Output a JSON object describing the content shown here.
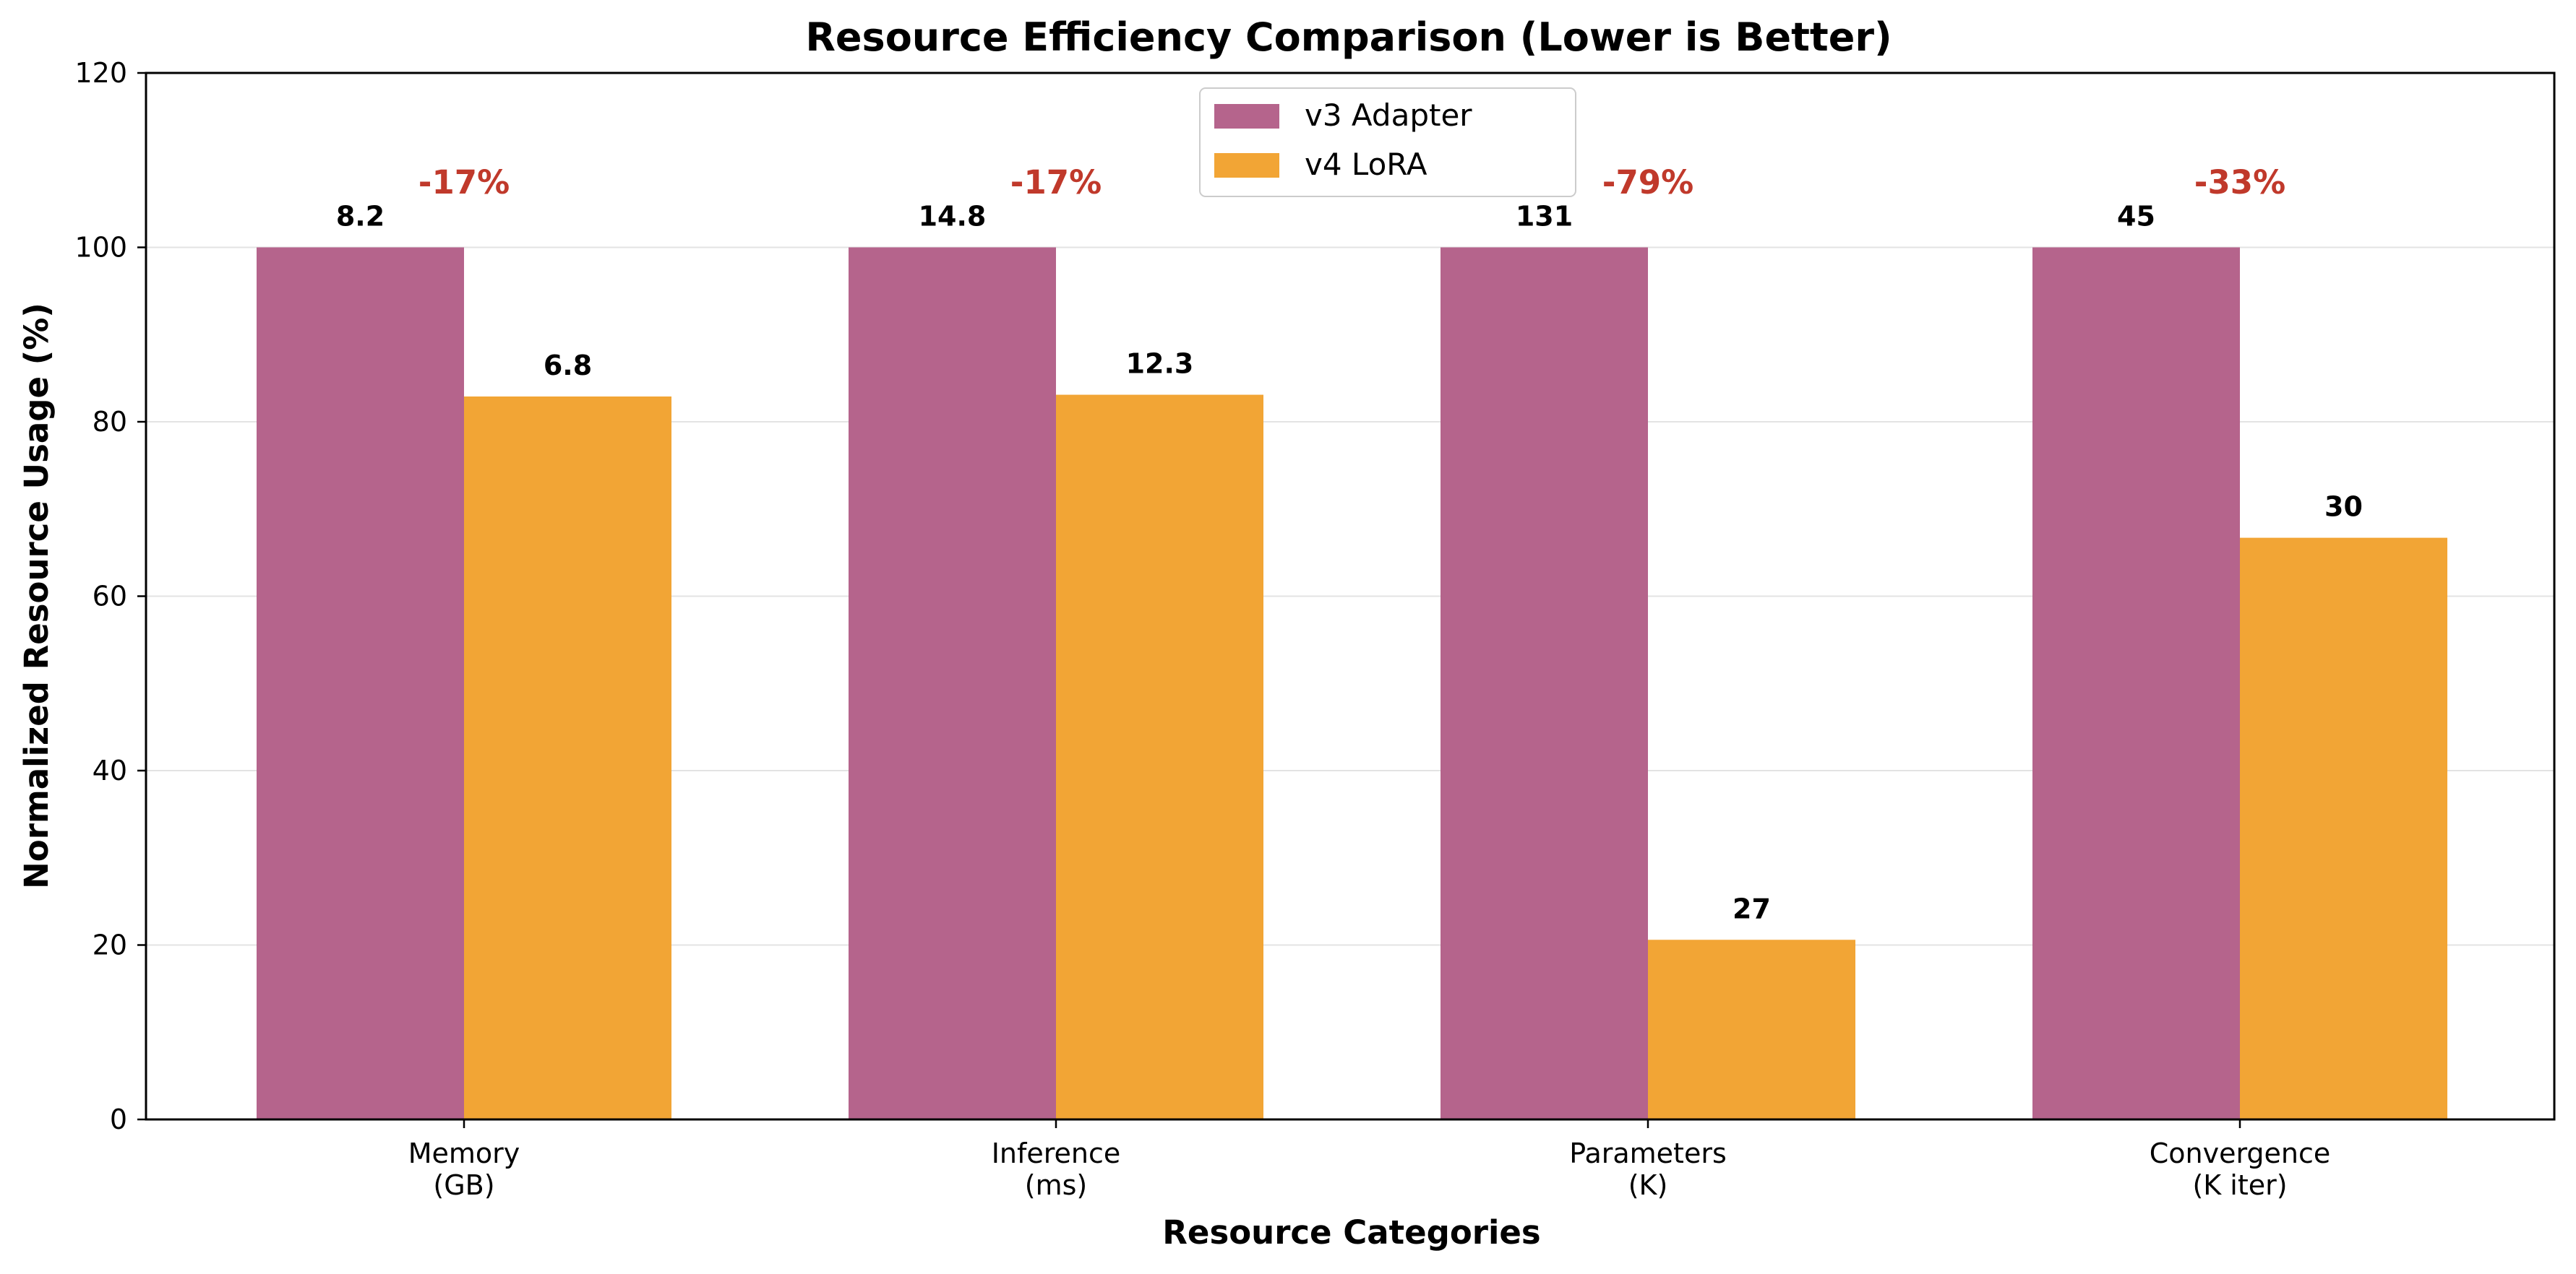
{
  "chart_data": {
    "type": "bar",
    "title": "Resource Efficiency Comparison (Lower is Better)",
    "xlabel": "Resource Categories",
    "ylabel": "Normalized Resource Usage (%)",
    "ylim": [
      0,
      120
    ],
    "yticks": [
      0,
      20,
      40,
      60,
      80,
      100,
      120
    ],
    "grid": "y",
    "legend_position": "top-center",
    "categories": [
      [
        "Memory",
        "(GB)"
      ],
      [
        "Inference",
        "(ms)"
      ],
      [
        "Parameters",
        "(K)"
      ],
      [
        "Convergence",
        "(K iter)"
      ]
    ],
    "series": [
      {
        "name": "v3 Adapter",
        "color": "#b5648c",
        "values": [
          100,
          100,
          100,
          100
        ],
        "labels": [
          "8.2",
          "14.8",
          "131",
          "45"
        ]
      },
      {
        "name": "v4 LoRA",
        "color": "#f2a535",
        "values": [
          82.9,
          83.1,
          20.6,
          66.7
        ],
        "labels": [
          "6.8",
          "12.3",
          "27",
          "30"
        ]
      }
    ],
    "change_labels": [
      "-17%",
      "-17%",
      "-79%",
      "-33%"
    ],
    "change_color": "#c0392b"
  }
}
